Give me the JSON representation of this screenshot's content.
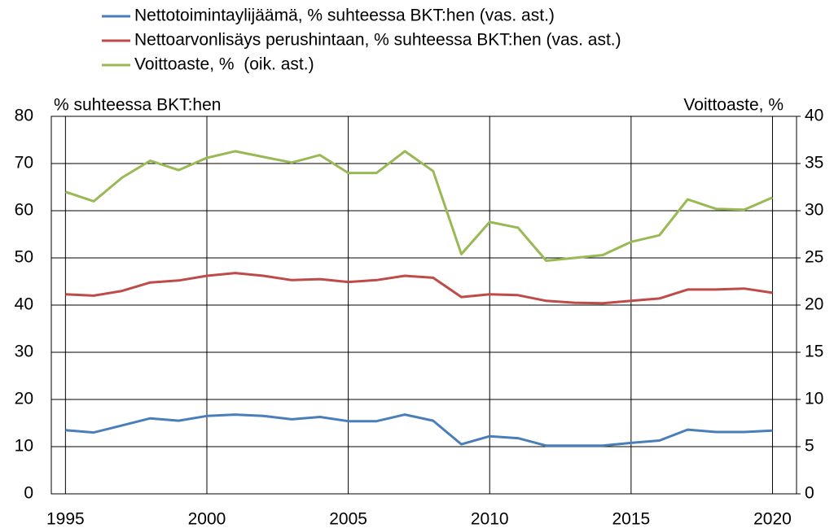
{
  "chart_data": {
    "type": "line",
    "y_label": "% suhteessa BKT:hen",
    "y2_label": "Voittoaste, %",
    "x": [
      1995,
      1996,
      1997,
      1998,
      1999,
      2000,
      2001,
      2002,
      2003,
      2004,
      2005,
      2006,
      2007,
      2008,
      2009,
      2010,
      2011,
      2012,
      2013,
      2014,
      2015,
      2016,
      2017,
      2018,
      2019,
      2020
    ],
    "series": [
      {
        "name": "Nettotoimintaylijäämä, % suhteessa BKT:hen (vas. ast.)",
        "color": "#4a7ebb",
        "values": [
          13.5,
          13,
          14.5,
          16,
          15.5,
          16.5,
          16.8,
          16.5,
          15.8,
          16.3,
          15.4,
          15.4,
          16.8,
          15.5,
          10.5,
          12.2,
          11.8,
          10.2,
          10.2,
          10.2,
          10.8,
          11.3,
          13.6,
          13.1,
          13.1,
          13.4
        ]
      },
      {
        "name": "Nettoarvonlisäys perushintaan, % suhteessa BKT:hen (vas. ast.)",
        "color": "#be4b48",
        "values": [
          42.3,
          42,
          43,
          44.8,
          45.2,
          46.2,
          46.8,
          46.2,
          45.3,
          45.5,
          44.9,
          45.3,
          46.2,
          45.8,
          41.7,
          42.3,
          42.1,
          40.9,
          40.5,
          40.4,
          40.9,
          41.4,
          43.3,
          43.3,
          43.5,
          42.6
        ]
      },
      {
        "name": "Voittoaste, %  (oik. ast.)",
        "color": "#98b954",
        "axis": "y2",
        "values": [
          32.0,
          31.0,
          33.5,
          35.3,
          34.3,
          35.6,
          36.3,
          35.7,
          35.1,
          35.9,
          34.0,
          34.0,
          36.3,
          34.2,
          25.4,
          28.8,
          28.2,
          24.7,
          25.0,
          25.3,
          26.7,
          27.4,
          31.2,
          30.2,
          30.1,
          31.4
        ]
      }
    ],
    "xlim": [
      1994.5,
      2020.85
    ],
    "xticks": [
      1995,
      2000,
      2005,
      2010,
      2015,
      2020
    ],
    "ylim": [
      0,
      80
    ],
    "yticks": [
      0,
      10,
      20,
      30,
      40,
      50,
      60,
      70,
      80
    ],
    "y2lim": [
      0,
      40
    ],
    "y2ticks": [
      0,
      5,
      10,
      15,
      20,
      25,
      30,
      35,
      40
    ],
    "grid": true
  }
}
